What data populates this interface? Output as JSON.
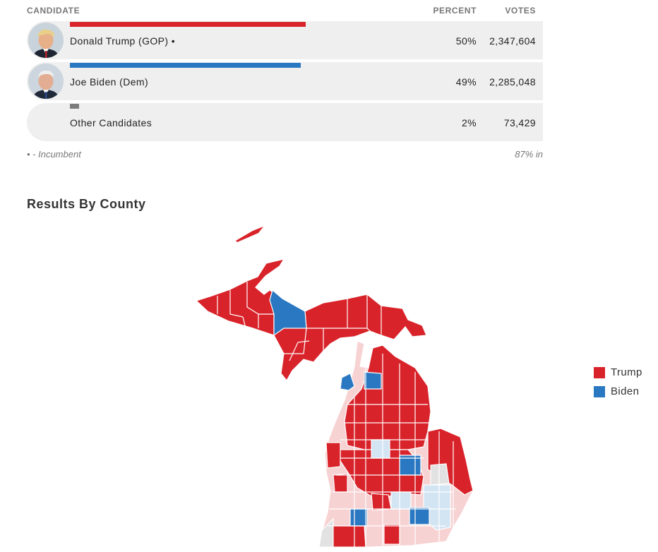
{
  "table": {
    "headers": {
      "candidate": "CANDIDATE",
      "percent": "PERCENT",
      "votes": "VOTES"
    },
    "rows": [
      {
        "name": "Donald Trump (GOP) •",
        "percent": "50%",
        "votes": "2,347,604",
        "bar_color": "#d9232a",
        "bar_share": 0.5,
        "has_photo": true,
        "photo_icon": "trump-photo-icon"
      },
      {
        "name": "Joe Biden (Dem)",
        "percent": "49%",
        "votes": "2,285,048",
        "bar_color": "#2a78c1",
        "bar_share": 0.49,
        "has_photo": true,
        "photo_icon": "biden-photo-icon"
      },
      {
        "name": "Other Candidates",
        "percent": "2%",
        "votes": "73,429",
        "bar_color": "#7b7b7b",
        "bar_share": 0.02,
        "has_photo": false
      }
    ],
    "footnote": "• - Incumbent",
    "reporting": "87% in"
  },
  "section": {
    "title": "Results By County"
  },
  "map": {
    "region": "Michigan",
    "colors": {
      "trump": "#d9232a",
      "trump_lean": "#f7d2d3",
      "biden": "#2a78c1",
      "biden_lean": "#d3e4f3",
      "no_data": "#e2e2e2"
    }
  },
  "legend": {
    "items": [
      {
        "label": "Trump",
        "color": "#d9232a"
      },
      {
        "label": "Biden",
        "color": "#2a78c1"
      }
    ]
  }
}
